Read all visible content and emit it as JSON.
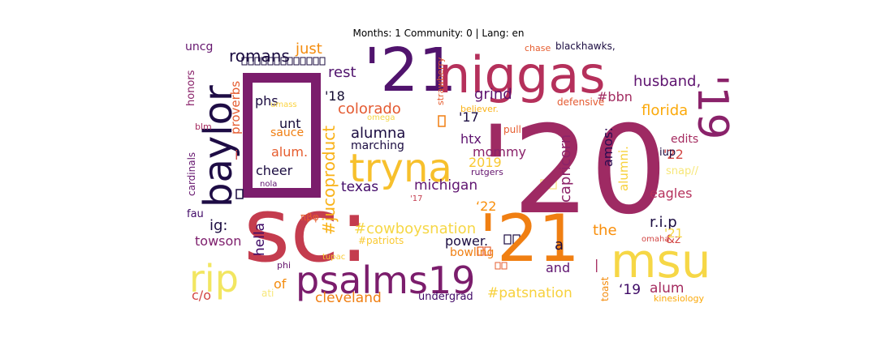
{
  "chart_data": {
    "type": "wordcloud",
    "title": "Months: 1 Community: 0 | Lang: en",
    "words": [
      {
        "text": "'20",
        "color": "#9e2a63"
      },
      {
        "text": "sc:",
        "color": "#c43c4e"
      },
      {
        "text": "'21",
        "color": "#f07f12"
      },
      {
        "text": "'21",
        "color": "#50136d"
      },
      {
        "text": "niggas",
        "color": "#b5305b"
      },
      {
        "text": "baylor",
        "color": "#1e0c45"
      },
      {
        "text": "tryna",
        "color": "#f7c02c"
      },
      {
        "text": "msu",
        "color": "#f6d746"
      },
      {
        "text": "psalms19",
        "color": "#7b1d6c"
      },
      {
        "text": "rip",
        "color": "#f2e661"
      },
      {
        "text": "'19",
        "color": "#8a226a"
      },
      {
        "text": "romans",
        "color": "#1b0c41"
      },
      {
        "text": "just",
        "color": "#f48c0d"
      },
      {
        "text": "rest",
        "color": "#50136d"
      },
      {
        "text": "husband,",
        "color": "#5f1470"
      },
      {
        "text": "uncg",
        "color": "#65156e"
      },
      {
        "text": "'18",
        "color": "#110a30"
      },
      {
        "text": "grind",
        "color": "#5f1470"
      },
      {
        "text": "#bbn",
        "color": "#a22c61"
      },
      {
        "text": "phs",
        "color": "#1b0c41"
      },
      {
        "text": "colorado",
        "color": "#e45a31"
      },
      {
        "text": "florida",
        "color": "#fba90a"
      },
      {
        "text": "#jucoproduct",
        "color": "#f9b218"
      },
      {
        "text": "proverbs",
        "color": "#e55c30"
      },
      {
        "text": "unt",
        "color": "#160b39"
      },
      {
        "text": "alumna",
        "color": "#1b0c41"
      },
      {
        "text": "'17",
        "color": "#1b0c41"
      },
      {
        "text": "capricorn",
        "color": "#8c2369"
      },
      {
        "text": "amos:",
        "color": "#2a0b51"
      },
      {
        "text": "alumni.",
        "color": "#f7d13d"
      },
      {
        "text": "edits",
        "color": "#a52c60"
      },
      {
        "text": "alum.",
        "color": "#e65d2f"
      },
      {
        "text": "htx",
        "color": "#5f1470"
      },
      {
        "text": "marching",
        "color": "#1b0c41"
      },
      {
        "text": "mommy",
        "color": "#8a226a"
      },
      {
        "text": "'22",
        "color": "#d24644"
      },
      {
        "text": "cheer",
        "color": "#1b0c41"
      },
      {
        "text": "2019",
        "color": "#f9c932"
      },
      {
        "text": "cardinals",
        "color": "#65156e"
      },
      {
        "text": "texas",
        "color": "#420a68"
      },
      {
        "text": "michigan",
        "color": "#5f1470"
      },
      {
        "text": "eagles",
        "color": "#b5305b"
      },
      {
        "text": "‘22",
        "color": "#f98e09"
      },
      {
        "text": "#cowboysnation",
        "color": "#f6d746"
      },
      {
        "text": "ig:",
        "color": "#1b0c41"
      },
      {
        "text": "hella",
        "color": "#3d0965"
      },
      {
        "text": "r.i.p",
        "color": "#1b0c41"
      },
      {
        "text": "towson",
        "color": "#7d1e6c"
      },
      {
        "text": "power.",
        "color": "#1b0c41"
      },
      {
        "text": "the",
        "color": "#f98e09"
      },
      {
        "text": "fau",
        "color": "#420a68"
      },
      {
        "text": "a",
        "color": "#1b0c41"
      },
      {
        "text": "bowling",
        "color": "#f07f12"
      },
      {
        "text": "of",
        "color": "#f48c0d"
      },
      {
        "text": "and",
        "color": "#5f1470"
      },
      {
        "text": "alum",
        "color": "#a52c60"
      },
      {
        "text": "c/o",
        "color": "#d24644"
      },
      {
        "text": "cleveland",
        "color": "#f07f12"
      },
      {
        "text": "#patsnation",
        "color": "#f7d13d"
      },
      {
        "text": "‘19",
        "color": "#3d0965"
      },
      {
        "text": "undergrad",
        "color": "#420a68"
      },
      {
        "text": "toast",
        "color": "#f48c0d"
      },
      {
        "text": "kinesiology",
        "color": "#fba90a"
      },
      {
        "text": "chase",
        "color": "#e65d2f"
      },
      {
        "text": "blackhawks,",
        "color": "#1b0c41"
      },
      {
        "text": "strawberry",
        "color": "#e65d2f"
      },
      {
        "text": "honors",
        "color": "#8a226a"
      },
      {
        "text": "blm",
        "color": "#a52c60"
      },
      {
        "text": "umass",
        "color": "#fbd340"
      },
      {
        "text": "believer.",
        "color": "#f9b218"
      },
      {
        "text": "omega",
        "color": "#f6d746"
      },
      {
        "text": "defensive",
        "color": "#e45a31"
      },
      {
        "text": "sauce",
        "color": "#f07f12"
      },
      {
        "text": "pull",
        "color": "#e65d2f"
      },
      {
        "text": "rutgers",
        "color": "#65156e"
      },
      {
        "text": "iup",
        "color": "#1b0c41"
      },
      {
        "text": "snap//",
        "color": "#f7e77a"
      },
      {
        "text": "nola",
        "color": "#5f1470"
      },
      {
        "text": "πβφ",
        "color": "#e65d2f"
      },
      {
        "text": "#patriots",
        "color": "#f9c932"
      },
      {
        "text": "tupac",
        "color": "#f9c932"
      },
      {
        "text": "phi",
        "color": "#65156e"
      },
      {
        "text": "ati",
        "color": "#f7e77a"
      },
      {
        "text": "omaha",
        "color": "#d24644"
      },
      {
        "text": "&z",
        "color": "#d24644"
      },
      {
        "text": "'21",
        "color": "#f6d746"
      },
      {
        "text": "'17",
        "color": "#c43c4e"
      },
      {
        "text": "i",
        "color": "#d24644"
      },
      {
        "text": "|",
        "color": "#a52c60"
      }
    ]
  }
}
